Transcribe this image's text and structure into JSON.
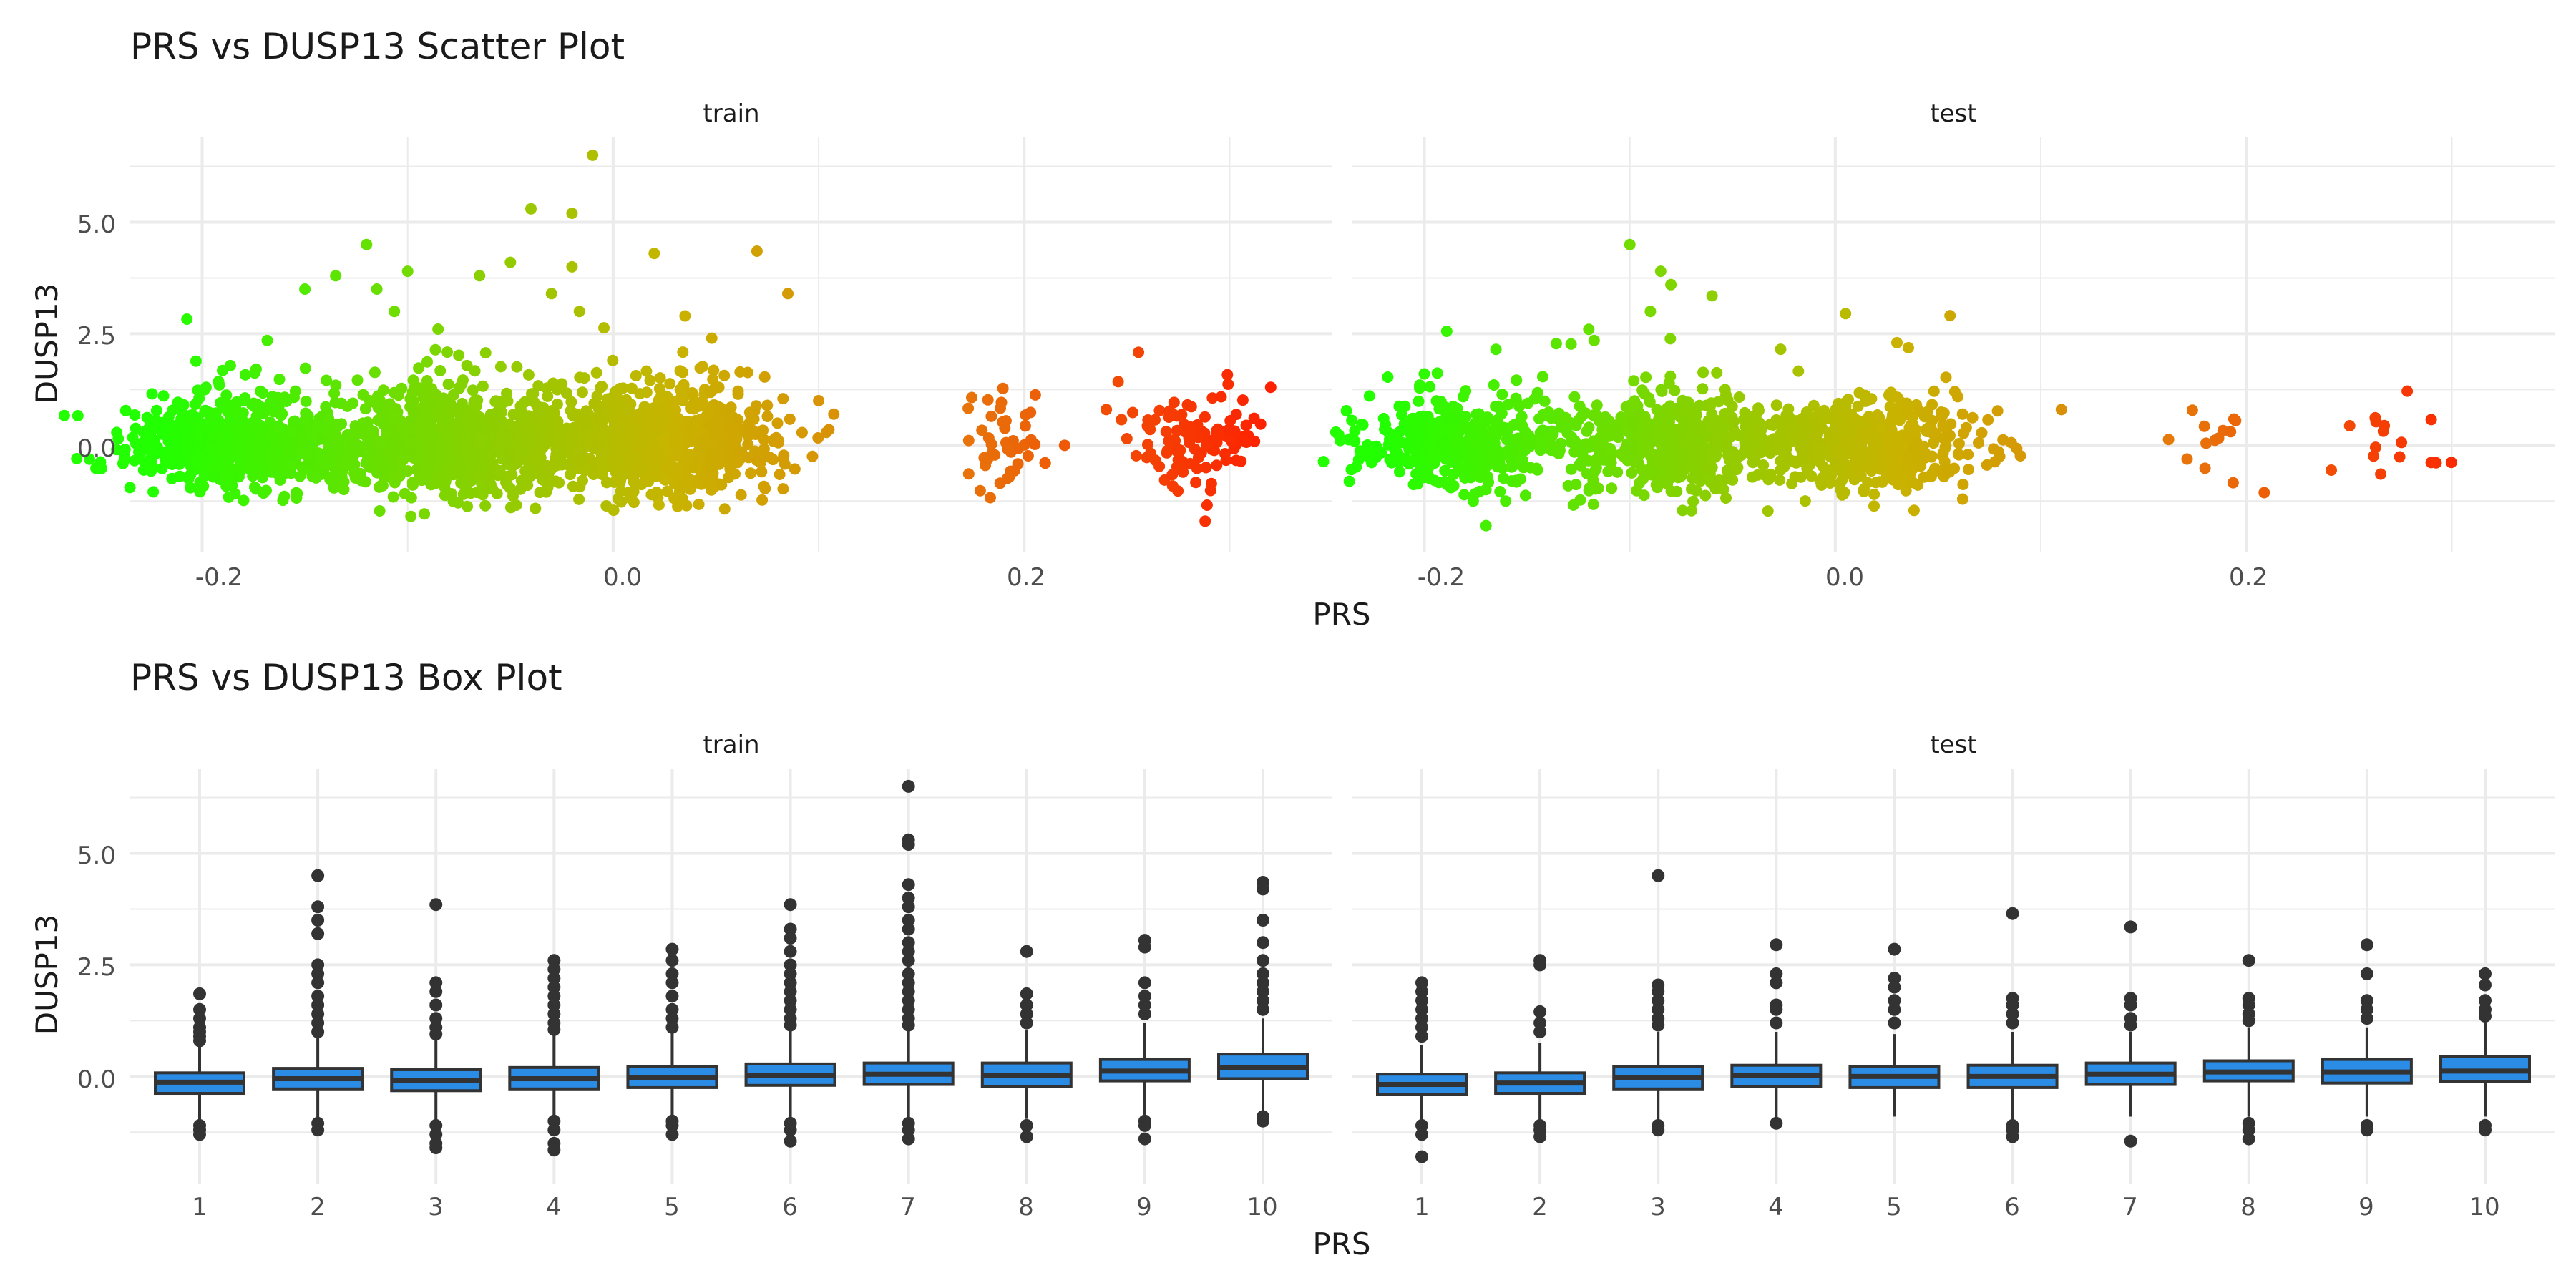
{
  "scatter": {
    "title": "PRS vs DUSP13 Scatter Plot",
    "xlabel": "PRS",
    "ylabel": "DUSP13",
    "facets": [
      "train",
      "test"
    ],
    "xticks": [
      "-0.2",
      "0.0",
      "0.2"
    ],
    "yticks": [
      "0.0",
      "2.5",
      "5.0"
    ]
  },
  "box": {
    "title": "PRS vs DUSP13 Box Plot",
    "xlabel": "PRS",
    "ylabel": "DUSP13",
    "facets": [
      "train",
      "test"
    ],
    "xticks": [
      "1",
      "2",
      "3",
      "4",
      "5",
      "6",
      "7",
      "8",
      "9",
      "10"
    ],
    "yticks": [
      "0.0",
      "2.5",
      "5.0"
    ]
  },
  "colors": {
    "low": "#22ff00",
    "mid": "#c8b400",
    "high": "#ff1a00",
    "box_fill": "#2b8ce6",
    "box_line": "#333333",
    "grid": "#ebebeb"
  },
  "chart_data": [
    {
      "type": "scatter",
      "title": "PRS vs DUSP13 Scatter Plot",
      "xlabel": "PRS",
      "ylabel": "DUSP13",
      "xlim": [
        -0.235,
        0.35
      ],
      "ylim": [
        -2.4,
        6.9
      ],
      "grid": true,
      "color_scale": "PRS (green low, red high)",
      "facets": [
        {
          "name": "train",
          "clusters": [
            {
              "x_center": -0.18,
              "x_spread": 0.028,
              "n": 700,
              "y_sd": 0.45
            },
            {
              "x_center": -0.08,
              "x_spread": 0.03,
              "n": 800,
              "y_sd": 0.55
            },
            {
              "x_center": 0.02,
              "x_spread": 0.03,
              "n": 850,
              "y_sd": 0.55
            },
            {
              "x_center": 0.19,
              "x_spread": 0.01,
              "n": 45,
              "y_sd": 0.45
            },
            {
              "x_center": 0.285,
              "x_spread": 0.015,
              "n": 110,
              "y_sd": 0.5
            }
          ],
          "outliers": [
            {
              "x": -0.01,
              "y": 6.5
            },
            {
              "x": -0.04,
              "y": 5.3
            },
            {
              "x": -0.02,
              "y": 5.2
            },
            {
              "x": -0.12,
              "y": 4.5
            },
            {
              "x": 0.07,
              "y": 4.35
            },
            {
              "x": 0.02,
              "y": 4.3
            },
            {
              "x": -0.05,
              "y": 4.1
            },
            {
              "x": -0.02,
              "y": 4.0
            },
            {
              "x": -0.1,
              "y": 3.9
            },
            {
              "x": -0.065,
              "y": 3.8
            },
            {
              "x": -0.135,
              "y": 3.8
            },
            {
              "x": -0.15,
              "y": 3.5
            },
            {
              "x": -0.115,
              "y": 3.5
            },
            {
              "x": 0.085,
              "y": 3.4
            },
            {
              "x": -0.03,
              "y": 3.4
            },
            {
              "x": 0.035,
              "y": 2.9
            },
            {
              "x": 0.1,
              "y": 1.0
            },
            {
              "x": 0.105,
              "y": 0.35
            },
            {
              "x": 0.24,
              "y": 0.8
            },
            {
              "x": 0.25,
              "y": 0.15
            },
            {
              "x": 0.32,
              "y": 1.3
            }
          ]
        },
        {
          "name": "test",
          "clusters": [
            {
              "x_center": -0.18,
              "x_spread": 0.025,
              "n": 450,
              "y_sd": 0.45
            },
            {
              "x_center": -0.08,
              "x_spread": 0.028,
              "n": 500,
              "y_sd": 0.5
            },
            {
              "x_center": 0.015,
              "x_spread": 0.027,
              "n": 520,
              "y_sd": 0.5
            },
            {
              "x_center": 0.185,
              "x_spread": 0.012,
              "n": 14,
              "y_sd": 0.5
            },
            {
              "x_center": 0.27,
              "x_spread": 0.015,
              "n": 16,
              "y_sd": 0.5
            }
          ],
          "outliers": [
            {
              "x": -0.1,
              "y": 4.5
            },
            {
              "x": -0.085,
              "y": 3.9
            },
            {
              "x": -0.08,
              "y": 3.6
            },
            {
              "x": -0.06,
              "y": 3.35
            },
            {
              "x": -0.09,
              "y": 3.0
            },
            {
              "x": 0.005,
              "y": 2.95
            },
            {
              "x": 0.03,
              "y": 2.3
            },
            {
              "x": -0.12,
              "y": 2.6
            },
            {
              "x": 0.08,
              "y": -0.25
            },
            {
              "x": 0.11,
              "y": 0.8
            },
            {
              "x": -0.2,
              "y": 1.6
            },
            {
              "x": -0.17,
              "y": -1.8
            }
          ]
        }
      ]
    },
    {
      "type": "box",
      "title": "PRS vs DUSP13 Box Plot",
      "xlabel": "PRS",
      "ylabel": "DUSP13",
      "categories": [
        "1",
        "2",
        "3",
        "4",
        "5",
        "6",
        "7",
        "8",
        "9",
        "10"
      ],
      "ylim": [
        -2.4,
        6.9
      ],
      "grid": true,
      "facets": [
        {
          "name": "train",
          "boxes": [
            {
              "q1": -0.38,
              "median": -0.13,
              "q3": 0.08,
              "whisker_low": -1.05,
              "whisker_high": 0.7,
              "outliers": [
                1.85,
                1.5,
                1.3,
                1.1,
                1.0,
                0.9,
                0.8,
                -1.1,
                -1.2,
                -1.3
              ]
            },
            {
              "q1": -0.28,
              "median": -0.05,
              "q3": 0.18,
              "whisker_low": -1.0,
              "whisker_high": 0.9,
              "outliers": [
                4.5,
                3.8,
                3.5,
                3.2,
                2.5,
                2.3,
                2.1,
                1.8,
                1.6,
                1.4,
                1.2,
                1.0,
                -1.05,
                -1.2
              ]
            },
            {
              "q1": -0.32,
              "median": -0.1,
              "q3": 0.15,
              "whisker_low": -1.0,
              "whisker_high": 0.85,
              "outliers": [
                3.85,
                2.1,
                1.9,
                1.6,
                1.3,
                1.1,
                0.95,
                -1.1,
                -1.3,
                -1.5,
                -1.6
              ]
            },
            {
              "q1": -0.28,
              "median": -0.05,
              "q3": 0.2,
              "whisker_low": -0.95,
              "whisker_high": 0.95,
              "outliers": [
                2.6,
                2.4,
                2.2,
                2.0,
                1.8,
                1.6,
                1.4,
                1.2,
                1.05,
                -1.0,
                -1.2,
                -1.5,
                -1.65
              ]
            },
            {
              "q1": -0.25,
              "median": -0.03,
              "q3": 0.22,
              "whisker_low": -0.95,
              "whisker_high": 1.0,
              "outliers": [
                2.85,
                2.6,
                2.3,
                2.1,
                1.8,
                1.5,
                1.3,
                1.1,
                -1.0,
                -1.1,
                -1.3
              ]
            },
            {
              "q1": -0.2,
              "median": 0.02,
              "q3": 0.28,
              "whisker_low": -0.95,
              "whisker_high": 1.05,
              "outliers": [
                3.85,
                3.3,
                3.1,
                2.8,
                2.5,
                2.3,
                2.1,
                1.9,
                1.7,
                1.5,
                1.3,
                1.15,
                -1.05,
                -1.2,
                -1.45
              ]
            },
            {
              "q1": -0.18,
              "median": 0.05,
              "q3": 0.3,
              "whisker_low": -0.95,
              "whisker_high": 1.05,
              "outliers": [
                6.5,
                5.3,
                5.2,
                4.3,
                4.0,
                3.8,
                3.5,
                3.3,
                3.0,
                2.8,
                2.6,
                2.3,
                2.1,
                1.9,
                1.7,
                1.5,
                1.3,
                1.15,
                -1.05,
                -1.2,
                -1.4
              ]
            },
            {
              "q1": -0.22,
              "median": 0.03,
              "q3": 0.3,
              "whisker_low": -0.95,
              "whisker_high": 1.05,
              "outliers": [
                2.8,
                1.85,
                1.6,
                1.4,
                1.2,
                -1.1,
                -1.35
              ]
            },
            {
              "q1": -0.1,
              "median": 0.12,
              "q3": 0.38,
              "whisker_low": -0.9,
              "whisker_high": 1.2,
              "outliers": [
                3.05,
                2.9,
                2.1,
                1.8,
                1.6,
                1.4,
                -1.0,
                -1.1,
                -1.4
              ]
            },
            {
              "q1": -0.05,
              "median": 0.2,
              "q3": 0.5,
              "whisker_low": -0.85,
              "whisker_high": 1.3,
              "outliers": [
                4.35,
                4.2,
                3.5,
                3.0,
                2.6,
                2.3,
                2.1,
                1.9,
                1.7,
                1.5,
                -0.9,
                -1.0
              ]
            }
          ]
        },
        {
          "name": "test",
          "boxes": [
            {
              "q1": -0.4,
              "median": -0.18,
              "q3": 0.05,
              "whisker_low": -1.05,
              "whisker_high": 0.7,
              "outliers": [
                2.1,
                1.9,
                1.7,
                1.5,
                1.3,
                1.1,
                0.9,
                -1.1,
                -1.3,
                -1.8
              ]
            },
            {
              "q1": -0.38,
              "median": -0.15,
              "q3": 0.08,
              "whisker_low": -1.05,
              "whisker_high": 0.75,
              "outliers": [
                2.6,
                2.5,
                1.45,
                1.2,
                1.0,
                -1.1,
                -1.2,
                -1.35
              ]
            },
            {
              "q1": -0.28,
              "median": -0.02,
              "q3": 0.22,
              "whisker_low": -1.0,
              "whisker_high": 1.0,
              "outliers": [
                4.5,
                2.05,
                1.9,
                1.7,
                1.5,
                1.3,
                1.15,
                -1.1,
                -1.2
              ]
            },
            {
              "q1": -0.22,
              "median": 0.02,
              "q3": 0.25,
              "whisker_low": -1.0,
              "whisker_high": 1.0,
              "outliers": [
                2.95,
                2.3,
                2.1,
                1.6,
                1.5,
                1.2,
                -1.05
              ]
            },
            {
              "q1": -0.25,
              "median": 0.0,
              "q3": 0.22,
              "whisker_low": -0.9,
              "whisker_high": 0.95,
              "outliers": [
                2.85,
                2.2,
                2.0,
                1.7,
                1.5,
                1.2
              ]
            },
            {
              "q1": -0.25,
              "median": 0.0,
              "q3": 0.25,
              "whisker_low": -1.0,
              "whisker_high": 1.0,
              "outliers": [
                3.65,
                1.75,
                1.6,
                1.4,
                1.2,
                -1.1,
                -1.2,
                -1.35
              ]
            },
            {
              "q1": -0.18,
              "median": 0.05,
              "q3": 0.3,
              "whisker_low": -0.9,
              "whisker_high": 1.0,
              "outliers": [
                3.35,
                1.75,
                1.6,
                1.3,
                1.15,
                -1.45
              ]
            },
            {
              "q1": -0.1,
              "median": 0.1,
              "q3": 0.35,
              "whisker_low": -0.9,
              "whisker_high": 1.1,
              "outliers": [
                2.6,
                1.75,
                1.6,
                1.4,
                1.25,
                -1.05,
                -1.2,
                -1.4
              ]
            },
            {
              "q1": -0.15,
              "median": 0.1,
              "q3": 0.38,
              "whisker_low": -0.9,
              "whisker_high": 1.1,
              "outliers": [
                2.95,
                2.3,
                1.7,
                1.5,
                1.3,
                -1.1,
                -1.2
              ]
            },
            {
              "q1": -0.12,
              "median": 0.12,
              "q3": 0.45,
              "whisker_low": -0.9,
              "whisker_high": 1.2,
              "outliers": [
                2.3,
                2.05,
                1.7,
                1.5,
                1.35,
                -1.1,
                -1.2
              ]
            }
          ]
        }
      ]
    }
  ]
}
